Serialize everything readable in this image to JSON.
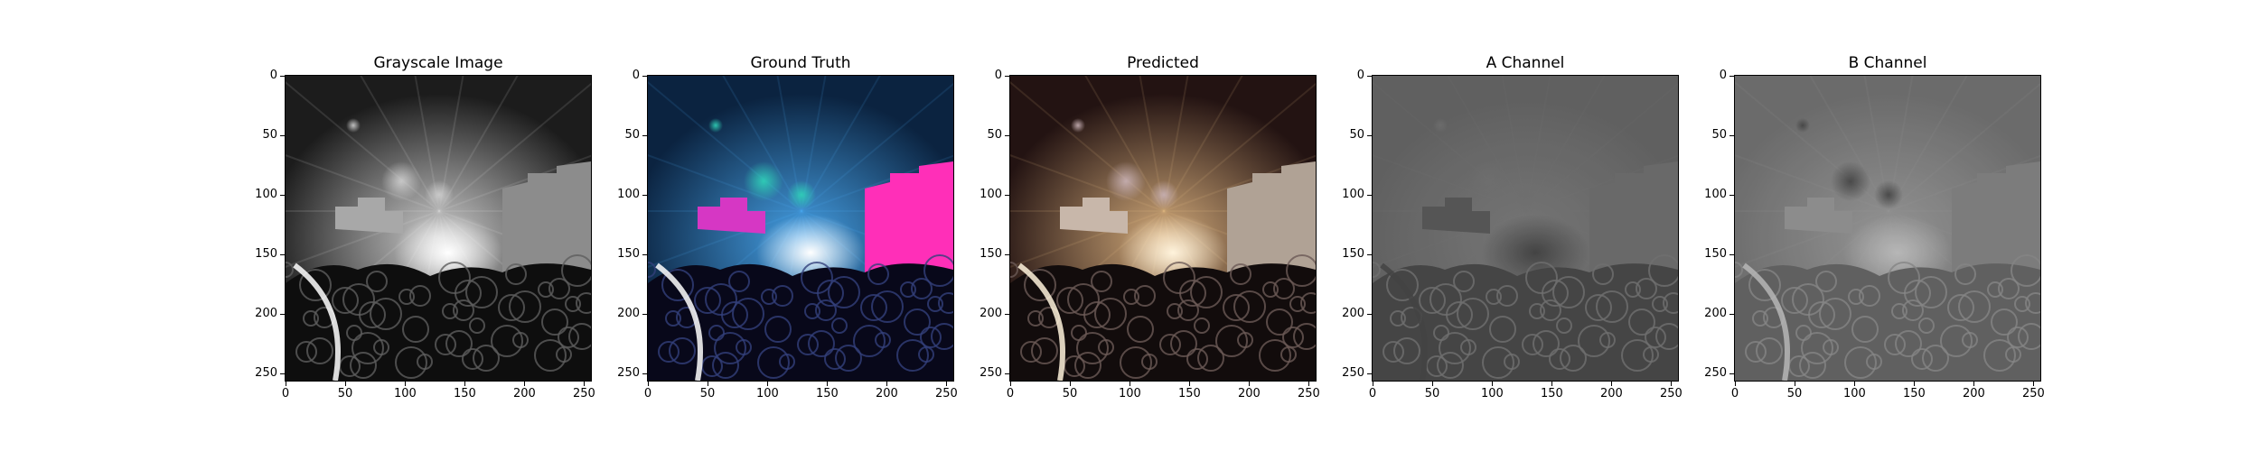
{
  "panels": [
    {
      "title": "Grayscale Image",
      "kind": "gray"
    },
    {
      "title": "Ground Truth",
      "kind": "truth"
    },
    {
      "title": "Predicted",
      "kind": "pred"
    },
    {
      "title": "A Channel",
      "kind": "a"
    },
    {
      "title": "B Channel",
      "kind": "b"
    }
  ],
  "axes": {
    "xticks": [
      "0",
      "50",
      "100",
      "150",
      "200",
      "250"
    ],
    "yticks": [
      "0",
      "50",
      "100",
      "150",
      "200",
      "250"
    ]
  }
}
